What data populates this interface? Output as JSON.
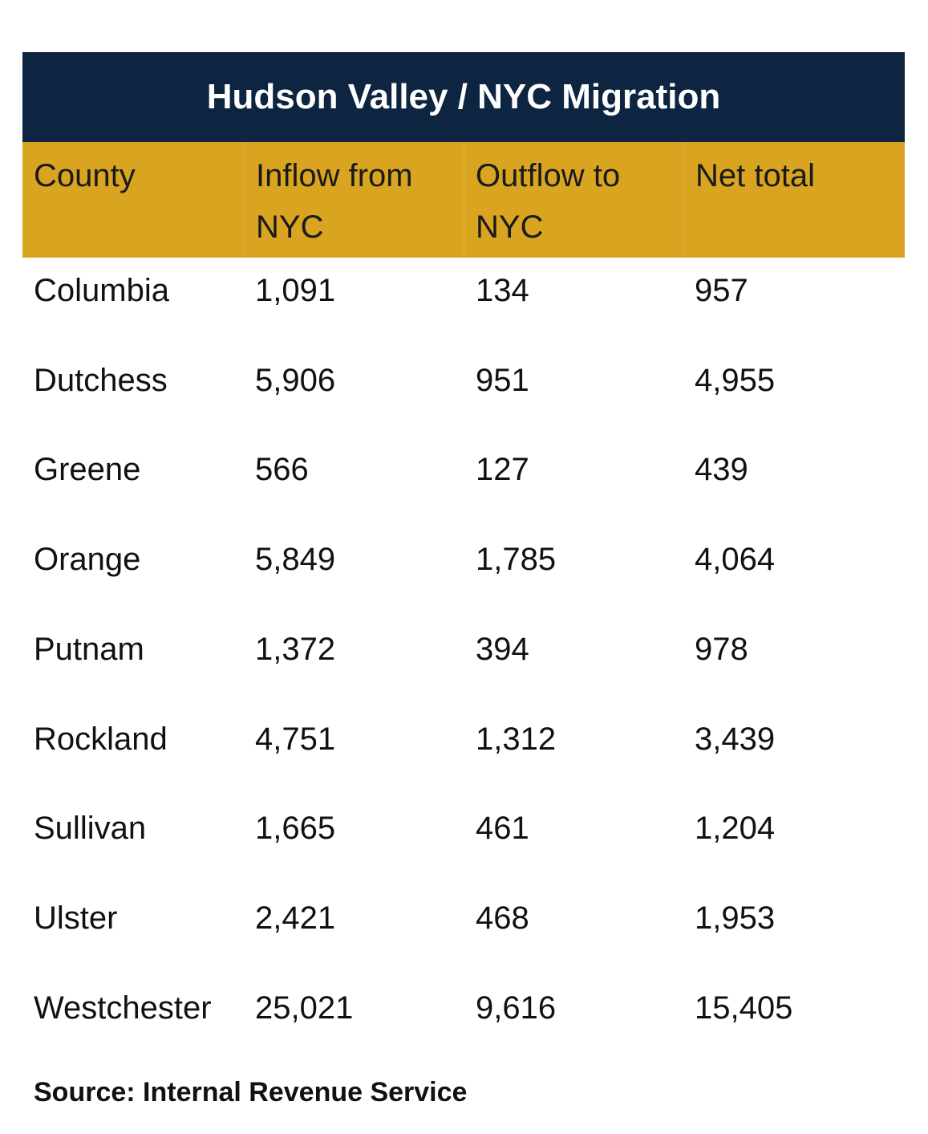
{
  "title": "Hudson Valley / NYC Migration",
  "table": {
    "columns": [
      "County",
      "Inflow from NYC",
      "Outflow to NYC",
      "Net total"
    ],
    "rows": [
      [
        "Columbia",
        "1,091",
        "134",
        "957"
      ],
      [
        "Dutchess",
        "5,906",
        "951",
        "4,955"
      ],
      [
        "Greene",
        "566",
        "127",
        "439"
      ],
      [
        "Orange",
        "5,849",
        "1,785",
        "4,064"
      ],
      [
        "Putnam",
        "1,372",
        "394",
        "978"
      ],
      [
        "Rockland",
        "4,751",
        "1,312",
        "3,439"
      ],
      [
        "Sullivan",
        "1,665",
        "461",
        "1,204"
      ],
      [
        "Ulster",
        "2,421",
        "468",
        "1,953"
      ],
      [
        "Westchester",
        "25,021",
        "9,616",
        "15,405"
      ]
    ]
  },
  "source": "Source: Internal Revenue Service"
}
